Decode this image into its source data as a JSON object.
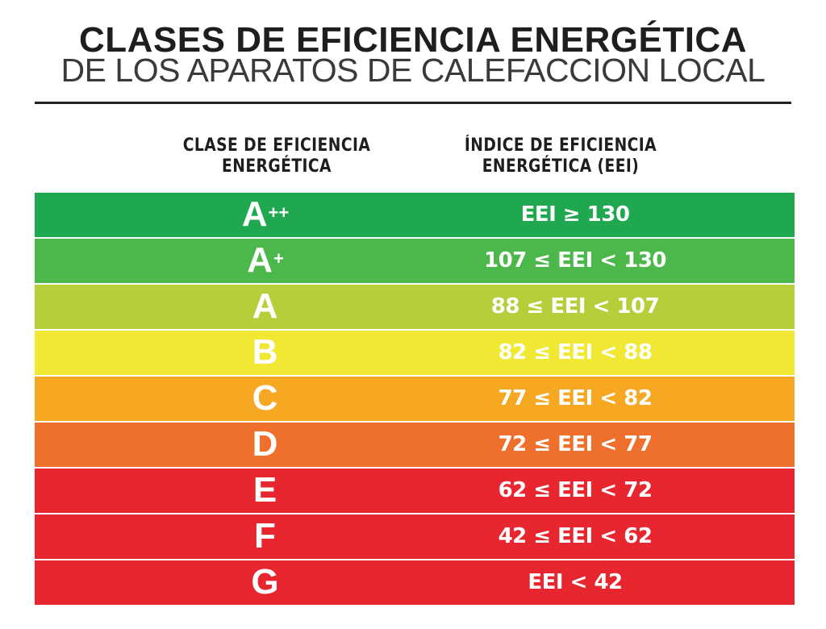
{
  "title": "CLASES DE EFICIENCIA ENERGÉTICA",
  "subtitle": "DE LOS APARATOS DE CALEFACCION LOCAL",
  "table": {
    "header_class": "CLASE DE EFICIENCIA ENERGÉTICA",
    "header_index": "ÍNDICE DE EFICIENCIA ENERGÉTICA (EEI)",
    "rows": [
      {
        "class": "A",
        "sup": "++",
        "range": "EEI ≥ 130",
        "color": "#1fa84f"
      },
      {
        "class": "A",
        "sup": "+",
        "range": "107 ≤ EEI < 130",
        "color": "#4cb74a"
      },
      {
        "class": "A",
        "sup": "",
        "range": "88 ≤ EEI < 107",
        "color": "#b5cf3b"
      },
      {
        "class": "B",
        "sup": "",
        "range": "82 ≤ EEI < 88",
        "color": "#f0e832"
      },
      {
        "class": "C",
        "sup": "",
        "range": "77 ≤ EEI < 82",
        "color": "#f7a823"
      },
      {
        "class": "D",
        "sup": "",
        "range": "72 ≤ EEI < 77",
        "color": "#ef6f2d"
      },
      {
        "class": "E",
        "sup": "",
        "range": "62 ≤ EEI < 72",
        "color": "#e8262f"
      },
      {
        "class": "F",
        "sup": "",
        "range": "42 ≤ EEI < 62",
        "color": "#e8262f"
      },
      {
        "class": "G",
        "sup": "",
        "range": "EEI < 42",
        "color": "#e8262f"
      }
    ]
  }
}
